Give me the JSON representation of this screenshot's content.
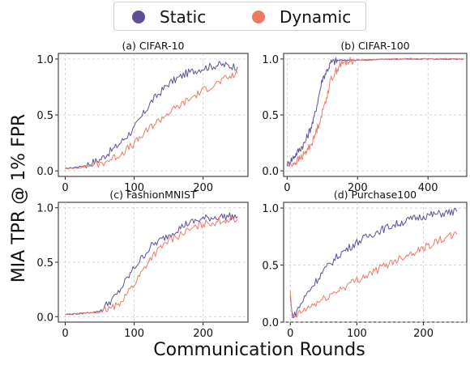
{
  "legend": {
    "items": [
      {
        "label": "Static",
        "color": "#5f4f96"
      },
      {
        "label": "Dynamic",
        "color": "#ee7a64"
      }
    ]
  },
  "ylabel": "MIA TPR @ 1% FPR",
  "xlabel": "Communication Rounds",
  "chart_data": [
    {
      "type": "line",
      "title": "(a) CIFAR-10",
      "xlim": [
        -10,
        265
      ],
      "ylim": [
        -0.05,
        1.05
      ],
      "xticks": [
        0,
        100,
        200
      ],
      "yticks": [
        0.0,
        0.5,
        1.0
      ],
      "ytick_labels": [
        "0.0",
        "0.5",
        "1.0"
      ],
      "grid": true,
      "series": [
        {
          "name": "Static",
          "color": "#5f4f96",
          "x": [
            0,
            25,
            50,
            75,
            100,
            125,
            150,
            175,
            200,
            225,
            250
          ],
          "y": [
            0.02,
            0.04,
            0.1,
            0.22,
            0.38,
            0.62,
            0.78,
            0.87,
            0.92,
            0.95,
            0.93
          ]
        },
        {
          "name": "Dynamic",
          "color": "#ee7a64",
          "x": [
            0,
            25,
            50,
            75,
            100,
            125,
            150,
            175,
            200,
            225,
            250
          ],
          "y": [
            0.02,
            0.03,
            0.06,
            0.13,
            0.24,
            0.4,
            0.52,
            0.62,
            0.72,
            0.8,
            0.87
          ]
        }
      ]
    },
    {
      "type": "line",
      "title": "(b) CIFAR-100",
      "xlim": [
        -10,
        510
      ],
      "ylim": [
        -0.05,
        1.05
      ],
      "xticks": [
        0,
        200,
        400
      ],
      "yticks": [
        0.0,
        0.5,
        1.0
      ],
      "ytick_labels": [
        "0.0",
        "0.5",
        "1.0"
      ],
      "grid": true,
      "series": [
        {
          "name": "Static",
          "color": "#5f4f96",
          "x": [
            0,
            25,
            50,
            75,
            100,
            125,
            150,
            175,
            200,
            300,
            400,
            500
          ],
          "y": [
            0.05,
            0.15,
            0.25,
            0.45,
            0.82,
            0.97,
            0.99,
            0.99,
            0.99,
            1.0,
            1.0,
            1.0
          ]
        },
        {
          "name": "Dynamic",
          "color": "#ee7a64",
          "x": [
            0,
            25,
            50,
            75,
            100,
            125,
            150,
            175,
            200,
            300,
            400,
            500
          ],
          "y": [
            0.04,
            0.08,
            0.15,
            0.28,
            0.52,
            0.82,
            0.95,
            0.98,
            0.99,
            1.0,
            1.0,
            1.0
          ]
        }
      ]
    },
    {
      "type": "line",
      "title": "(c) FashionMNIST",
      "xlim": [
        -10,
        265
      ],
      "ylim": [
        -0.05,
        1.05
      ],
      "xticks": [
        0,
        100,
        200
      ],
      "yticks": [
        0.0,
        0.5,
        1.0
      ],
      "ytick_labels": [
        "0.0",
        "0.5",
        "1.0"
      ],
      "grid": true,
      "series": [
        {
          "name": "Static",
          "color": "#5f4f96",
          "x": [
            0,
            25,
            50,
            75,
            100,
            125,
            150,
            175,
            200,
            225,
            250
          ],
          "y": [
            0.02,
            0.03,
            0.05,
            0.2,
            0.45,
            0.65,
            0.75,
            0.85,
            0.9,
            0.92,
            0.92
          ]
        },
        {
          "name": "Dynamic",
          "color": "#ee7a64",
          "x": [
            0,
            25,
            50,
            75,
            100,
            125,
            150,
            175,
            200,
            225,
            250
          ],
          "y": [
            0.02,
            0.03,
            0.04,
            0.1,
            0.3,
            0.55,
            0.7,
            0.78,
            0.85,
            0.88,
            0.9
          ]
        }
      ]
    },
    {
      "type": "line",
      "title": "(d) Purchase100",
      "xlim": [
        -10,
        265
      ],
      "ylim": [
        0.0,
        1.05
      ],
      "xticks": [
        0,
        100,
        200
      ],
      "yticks": [
        0.0,
        0.5,
        1.0
      ],
      "ytick_labels": [
        "0.0",
        "0.5",
        "1.0"
      ],
      "grid": true,
      "series": [
        {
          "name": "Static",
          "color": "#5f4f96",
          "x": [
            0,
            2,
            5,
            10,
            25,
            50,
            75,
            100,
            125,
            150,
            175,
            200,
            225,
            250
          ],
          "y": [
            0.22,
            0.1,
            0.04,
            0.1,
            0.25,
            0.45,
            0.6,
            0.7,
            0.78,
            0.84,
            0.89,
            0.93,
            0.95,
            0.97
          ]
        },
        {
          "name": "Dynamic",
          "color": "#ee7a64",
          "x": [
            0,
            2,
            5,
            10,
            25,
            50,
            75,
            100,
            125,
            150,
            175,
            200,
            225,
            250
          ],
          "y": [
            0.25,
            0.1,
            0.04,
            0.06,
            0.12,
            0.2,
            0.29,
            0.37,
            0.44,
            0.52,
            0.59,
            0.65,
            0.72,
            0.77
          ]
        }
      ]
    }
  ]
}
